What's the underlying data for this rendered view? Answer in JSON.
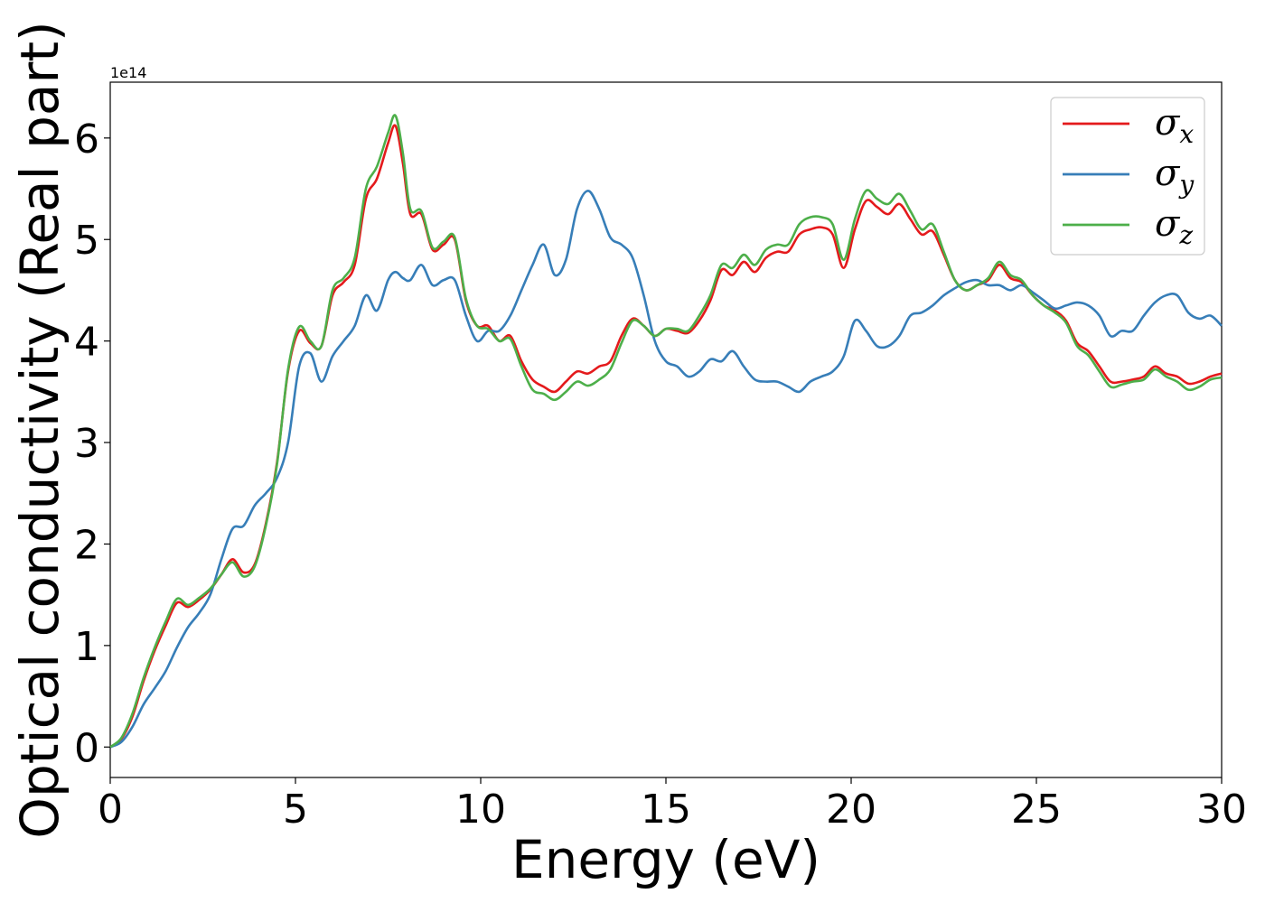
{
  "chart_data": {
    "type": "line",
    "xlabel": "Energy (eV)",
    "ylabel": "Optical conductivity (Real part)",
    "y_offset_label": "1e14",
    "xlim": [
      0,
      30
    ],
    "ylim": [
      -0.3,
      6.55
    ],
    "xticks": [
      0,
      5,
      10,
      15,
      20,
      25,
      30
    ],
    "xtick_labels": [
      "0",
      "5",
      "10",
      "15",
      "20",
      "25",
      "30"
    ],
    "yticks": [
      0,
      1,
      2,
      3,
      4,
      5,
      6
    ],
    "ytick_labels": [
      "0",
      "1",
      "2",
      "3",
      "4",
      "5",
      "6"
    ],
    "grid": false,
    "legend_position": "top-right",
    "series": [
      {
        "name": "σx",
        "symbol": "σ",
        "subscript": "x",
        "color": "#e41a1c",
        "x": [
          0,
          0.3,
          0.6,
          0.9,
          1.2,
          1.5,
          1.8,
          2.1,
          2.4,
          2.7,
          3.0,
          3.3,
          3.6,
          3.9,
          4.2,
          4.5,
          4.8,
          5.1,
          5.4,
          5.7,
          6.0,
          6.3,
          6.6,
          6.9,
          7.2,
          7.5,
          7.7,
          7.9,
          8.1,
          8.4,
          8.7,
          9.0,
          9.3,
          9.6,
          9.9,
          10.2,
          10.5,
          10.8,
          11.1,
          11.4,
          11.7,
          12.0,
          12.3,
          12.6,
          12.9,
          13.2,
          13.5,
          13.8,
          14.1,
          14.4,
          14.7,
          15.0,
          15.3,
          15.6,
          15.9,
          16.2,
          16.5,
          16.8,
          17.1,
          17.4,
          17.7,
          18.0,
          18.3,
          18.6,
          18.9,
          19.2,
          19.5,
          19.8,
          20.1,
          20.4,
          20.7,
          21.0,
          21.3,
          21.6,
          21.9,
          22.2,
          22.5,
          22.8,
          23.1,
          23.4,
          23.7,
          24.0,
          24.3,
          24.6,
          24.9,
          25.2,
          25.5,
          25.8,
          26.1,
          26.4,
          26.7,
          27.0,
          27.3,
          27.6,
          27.9,
          28.2,
          28.5,
          28.8,
          29.1,
          29.4,
          29.7,
          30.0
        ],
        "y": [
          0.0,
          0.08,
          0.3,
          0.65,
          0.95,
          1.2,
          1.42,
          1.38,
          1.45,
          1.55,
          1.7,
          1.85,
          1.72,
          1.8,
          2.2,
          2.8,
          3.7,
          4.1,
          3.98,
          3.95,
          4.45,
          4.58,
          4.75,
          5.4,
          5.6,
          5.95,
          6.12,
          5.75,
          5.25,
          5.25,
          4.9,
          4.95,
          5.0,
          4.4,
          4.15,
          4.15,
          4.0,
          4.05,
          3.8,
          3.62,
          3.55,
          3.5,
          3.6,
          3.7,
          3.68,
          3.75,
          3.8,
          4.05,
          4.22,
          4.15,
          4.05,
          4.12,
          4.1,
          4.08,
          4.2,
          4.4,
          4.7,
          4.65,
          4.78,
          4.68,
          4.82,
          4.88,
          4.88,
          5.05,
          5.1,
          5.12,
          5.05,
          4.72,
          5.1,
          5.38,
          5.32,
          5.25,
          5.35,
          5.2,
          5.05,
          5.08,
          4.85,
          4.6,
          4.5,
          4.55,
          4.6,
          4.75,
          4.62,
          4.58,
          4.45,
          4.35,
          4.3,
          4.2,
          3.98,
          3.9,
          3.75,
          3.6,
          3.6,
          3.62,
          3.65,
          3.75,
          3.68,
          3.65,
          3.58,
          3.6,
          3.65,
          3.68
        ]
      },
      {
        "name": "σy",
        "symbol": "σ",
        "subscript": "y",
        "color": "#377eb8",
        "x": [
          0,
          0.3,
          0.6,
          0.9,
          1.2,
          1.5,
          1.8,
          2.1,
          2.4,
          2.7,
          3.0,
          3.3,
          3.6,
          3.9,
          4.2,
          4.5,
          4.8,
          5.1,
          5.4,
          5.7,
          6.0,
          6.3,
          6.6,
          6.9,
          7.2,
          7.5,
          7.7,
          7.9,
          8.1,
          8.4,
          8.7,
          9.0,
          9.3,
          9.6,
          9.9,
          10.2,
          10.5,
          10.8,
          11.1,
          11.4,
          11.7,
          12.0,
          12.3,
          12.6,
          12.9,
          13.2,
          13.5,
          13.8,
          14.1,
          14.4,
          14.7,
          15.0,
          15.3,
          15.6,
          15.9,
          16.2,
          16.5,
          16.8,
          17.1,
          17.4,
          17.7,
          18.0,
          18.3,
          18.6,
          18.9,
          19.2,
          19.5,
          19.8,
          20.1,
          20.4,
          20.7,
          21.0,
          21.3,
          21.6,
          21.9,
          22.2,
          22.5,
          22.8,
          23.1,
          23.4,
          23.7,
          24.0,
          24.3,
          24.6,
          24.9,
          25.2,
          25.5,
          25.8,
          26.1,
          26.4,
          26.7,
          27.0,
          27.3,
          27.6,
          27.9,
          28.2,
          28.5,
          28.8,
          29.1,
          29.4,
          29.7,
          30.0
        ],
        "y": [
          0.0,
          0.05,
          0.2,
          0.42,
          0.58,
          0.75,
          0.98,
          1.18,
          1.32,
          1.5,
          1.85,
          2.15,
          2.18,
          2.38,
          2.5,
          2.65,
          3.0,
          3.75,
          3.88,
          3.6,
          3.85,
          4.0,
          4.15,
          4.45,
          4.3,
          4.6,
          4.68,
          4.62,
          4.6,
          4.75,
          4.55,
          4.6,
          4.6,
          4.25,
          4.0,
          4.1,
          4.1,
          4.25,
          4.5,
          4.75,
          4.95,
          4.65,
          4.8,
          5.3,
          5.48,
          5.3,
          5.02,
          4.95,
          4.82,
          4.45,
          4.0,
          3.8,
          3.75,
          3.65,
          3.7,
          3.82,
          3.8,
          3.9,
          3.75,
          3.62,
          3.6,
          3.6,
          3.55,
          3.5,
          3.6,
          3.65,
          3.7,
          3.85,
          4.2,
          4.1,
          3.95,
          3.95,
          4.05,
          4.25,
          4.28,
          4.35,
          4.45,
          4.52,
          4.58,
          4.6,
          4.55,
          4.55,
          4.5,
          4.55,
          4.48,
          4.4,
          4.32,
          4.35,
          4.38,
          4.35,
          4.25,
          4.05,
          4.1,
          4.1,
          4.25,
          4.38,
          4.45,
          4.45,
          4.28,
          4.22,
          4.25,
          4.15
        ]
      },
      {
        "name": "σz",
        "symbol": "σ",
        "subscript": "z",
        "color": "#4daf4a",
        "x": [
          0,
          0.3,
          0.6,
          0.9,
          1.2,
          1.5,
          1.8,
          2.1,
          2.4,
          2.7,
          3.0,
          3.3,
          3.6,
          3.9,
          4.2,
          4.5,
          4.8,
          5.1,
          5.4,
          5.7,
          6.0,
          6.3,
          6.6,
          6.9,
          7.2,
          7.5,
          7.7,
          7.9,
          8.1,
          8.4,
          8.7,
          9.0,
          9.3,
          9.6,
          9.9,
          10.2,
          10.5,
          10.8,
          11.1,
          11.4,
          11.7,
          12.0,
          12.3,
          12.6,
          12.9,
          13.2,
          13.5,
          13.8,
          14.1,
          14.4,
          14.7,
          15.0,
          15.3,
          15.6,
          15.9,
          16.2,
          16.5,
          16.8,
          17.1,
          17.4,
          17.7,
          18.0,
          18.3,
          18.6,
          18.9,
          19.2,
          19.5,
          19.8,
          20.1,
          20.4,
          20.7,
          21.0,
          21.3,
          21.6,
          21.9,
          22.2,
          22.5,
          22.8,
          23.1,
          23.4,
          23.7,
          24.0,
          24.3,
          24.6,
          24.9,
          25.2,
          25.5,
          25.8,
          26.1,
          26.4,
          26.7,
          27.0,
          27.3,
          27.6,
          27.9,
          28.2,
          28.5,
          28.8,
          29.1,
          29.4,
          29.7,
          30.0
        ],
        "y": [
          0.0,
          0.09,
          0.33,
          0.68,
          0.98,
          1.24,
          1.46,
          1.4,
          1.47,
          1.56,
          1.7,
          1.82,
          1.68,
          1.78,
          2.18,
          2.78,
          3.72,
          4.14,
          4.0,
          3.95,
          4.5,
          4.62,
          4.82,
          5.5,
          5.72,
          6.05,
          6.22,
          5.85,
          5.3,
          5.28,
          4.92,
          4.98,
          5.02,
          4.42,
          4.15,
          4.12,
          4.0,
          4.02,
          3.75,
          3.52,
          3.48,
          3.42,
          3.5,
          3.6,
          3.56,
          3.62,
          3.72,
          3.98,
          4.2,
          4.15,
          4.05,
          4.12,
          4.12,
          4.1,
          4.25,
          4.45,
          4.75,
          4.72,
          4.85,
          4.75,
          4.9,
          4.95,
          4.95,
          5.15,
          5.22,
          5.22,
          5.15,
          4.8,
          5.2,
          5.48,
          5.4,
          5.35,
          5.45,
          5.28,
          5.1,
          5.15,
          4.88,
          4.6,
          4.5,
          4.55,
          4.62,
          4.78,
          4.65,
          4.6,
          4.45,
          4.35,
          4.28,
          4.18,
          3.95,
          3.86,
          3.7,
          3.55,
          3.57,
          3.6,
          3.62,
          3.72,
          3.65,
          3.6,
          3.52,
          3.55,
          3.62,
          3.64
        ]
      }
    ]
  }
}
